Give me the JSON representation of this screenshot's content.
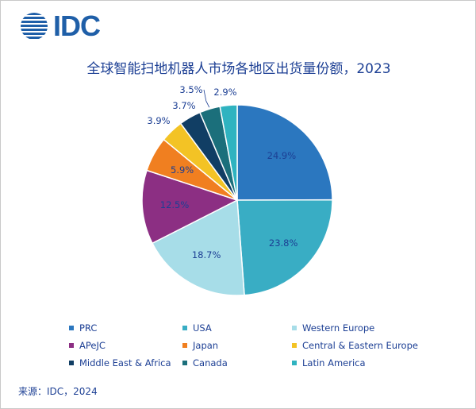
{
  "brand": {
    "name": "IDC"
  },
  "chart_data": {
    "type": "pie",
    "title": "全球智能扫地机器人市场各地区出货量份额，2023",
    "categories": [
      "PRC",
      "USA",
      "Western Europe",
      "APeJC",
      "Japan",
      "Central & Eastern Europe",
      "Middle East & Africa",
      "Canada",
      "Latin America"
    ],
    "values": [
      24.9,
      23.8,
      18.7,
      12.5,
      5.9,
      3.9,
      3.7,
      3.5,
      2.9
    ],
    "labels": [
      "24.9%",
      "23.8%",
      "18.7%",
      "12.5%",
      "5.9%",
      "3.9%",
      "3.7%",
      "3.5%",
      "2.9%"
    ],
    "colors": [
      "#2b77bf",
      "#39adc4",
      "#a7dde8",
      "#8c2f83",
      "#f07f20",
      "#f3c325",
      "#113e64",
      "#1b6f7b",
      "#2fb3c0"
    ],
    "legend_position": "bottom"
  },
  "source": "来源：IDC，2024"
}
